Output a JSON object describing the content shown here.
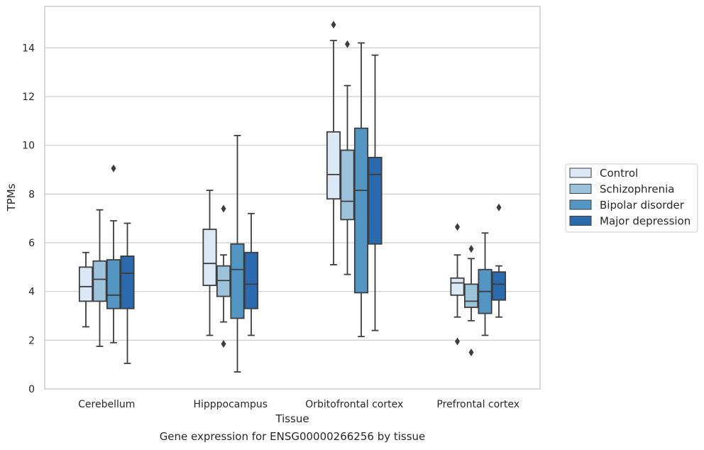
{
  "caption": "Gene expression for ENSG00000266256 by tissue",
  "chart_data": {
    "type": "boxplot",
    "xlabel": "Tissue",
    "ylabel": "TPMs",
    "ylim": [
      0,
      15.7
    ],
    "yticks": [
      0,
      2,
      4,
      6,
      8,
      10,
      12,
      14
    ],
    "grid": "horizontal",
    "legend_position": "right",
    "categories": [
      "Cerebellum",
      "Hipppocampus",
      "Orbitofrontal cortex",
      "Prefrontal cortex"
    ],
    "series": [
      {
        "name": "Control",
        "color": "#dbe9f6",
        "boxes": [
          {
            "whislo": 2.55,
            "q1": 3.6,
            "med": 4.2,
            "q3": 5.0,
            "whishi": 5.6,
            "fliers": []
          },
          {
            "whislo": 2.2,
            "q1": 4.25,
            "med": 5.15,
            "q3": 6.55,
            "whishi": 8.15,
            "fliers": []
          },
          {
            "whislo": 5.1,
            "q1": 7.8,
            "med": 8.8,
            "q3": 10.55,
            "whishi": 14.3,
            "fliers": [
              14.95
            ]
          },
          {
            "whislo": 2.95,
            "q1": 3.85,
            "med": 4.35,
            "q3": 4.55,
            "whishi": 5.5,
            "fliers": [
              6.65,
              1.95
            ]
          }
        ]
      },
      {
        "name": "Schizophrenia",
        "color": "#9dc3dc",
        "boxes": [
          {
            "whislo": 1.75,
            "q1": 3.6,
            "med": 4.5,
            "q3": 5.25,
            "whishi": 7.35,
            "fliers": []
          },
          {
            "whislo": 2.75,
            "q1": 3.8,
            "med": 4.45,
            "q3": 5.05,
            "whishi": 5.5,
            "fliers": [
              7.4,
              1.85
            ]
          },
          {
            "whislo": 4.7,
            "q1": 6.95,
            "med": 7.7,
            "q3": 9.8,
            "whishi": 12.45,
            "fliers": [
              14.15
            ]
          },
          {
            "whislo": 2.8,
            "q1": 3.35,
            "med": 3.6,
            "q3": 4.3,
            "whishi": 5.35,
            "fliers": [
              5.75,
              1.5
            ]
          }
        ]
      },
      {
        "name": "Bipolar disorder",
        "color": "#5396c4",
        "boxes": [
          {
            "whislo": 1.9,
            "q1": 3.3,
            "med": 3.85,
            "q3": 5.3,
            "whishi": 6.9,
            "fliers": [
              9.05
            ]
          },
          {
            "whislo": 0.7,
            "q1": 2.9,
            "med": 4.9,
            "q3": 5.95,
            "whishi": 10.4,
            "fliers": []
          },
          {
            "whislo": 2.15,
            "q1": 3.95,
            "med": 8.15,
            "q3": 10.7,
            "whishi": 14.2,
            "fliers": []
          },
          {
            "whislo": 2.2,
            "q1": 3.1,
            "med": 4.0,
            "q3": 4.9,
            "whishi": 6.4,
            "fliers": []
          }
        ]
      },
      {
        "name": "Major depression",
        "color": "#2b6aad",
        "boxes": [
          {
            "whislo": 1.05,
            "q1": 3.3,
            "med": 4.75,
            "q3": 5.45,
            "whishi": 6.8,
            "fliers": []
          },
          {
            "whislo": 2.2,
            "q1": 3.3,
            "med": 4.3,
            "q3": 5.6,
            "whishi": 7.2,
            "fliers": []
          },
          {
            "whislo": 2.4,
            "q1": 5.95,
            "med": 8.8,
            "q3": 9.5,
            "whishi": 13.7,
            "fliers": []
          },
          {
            "whislo": 2.95,
            "q1": 3.65,
            "med": 4.3,
            "q3": 4.8,
            "whishi": 5.05,
            "fliers": [
              7.45
            ]
          }
        ]
      }
    ]
  }
}
